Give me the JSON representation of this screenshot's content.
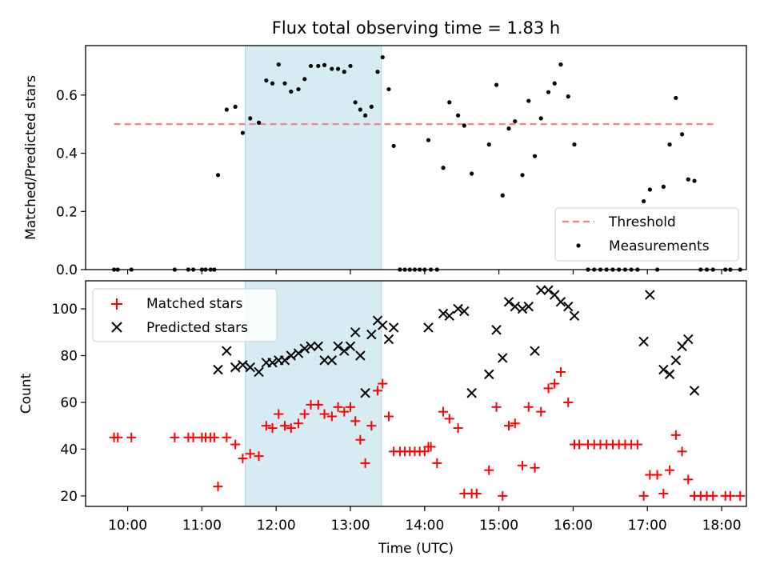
{
  "chart_data": [
    {
      "type": "scatter",
      "title": "Flux total observing time = 1.83 h",
      "ylabel": "Matched/Predicted stars",
      "xlabel": "",
      "xlim": [
        "09:26",
        "18:20"
      ],
      "ylim": [
        0,
        0.77
      ],
      "yticks": [
        0.0,
        0.2,
        0.4,
        0.6
      ],
      "ytick_labels": [
        "0.0",
        "0.2",
        "0.4",
        "0.6"
      ],
      "highlight_span": {
        "start": "11:35",
        "end": "13:25",
        "color": "#add8e6"
      },
      "reference_line": {
        "name": "Threshold",
        "y": 0.5,
        "x_start": "09:49",
        "x_end": "17:55",
        "style": "dashed",
        "color": "#f08080"
      },
      "legend": {
        "placement": "lower-right",
        "entries": [
          {
            "label": "Threshold",
            "marker": "dash",
            "color": "#f08080"
          },
          {
            "label": "Measurements",
            "marker": "dot",
            "color": "#000000"
          }
        ]
      },
      "series": [
        {
          "name": "Measurements",
          "marker": "dot",
          "color": "#000000",
          "points": [
            [
              "09:49",
              0
            ],
            [
              "09:52",
              0
            ],
            [
              "10:03",
              0
            ],
            [
              "10:38",
              0
            ],
            [
              "10:49",
              0
            ],
            [
              "10:53",
              0
            ],
            [
              "11:00",
              0
            ],
            [
              "11:03",
              0
            ],
            [
              "11:07",
              0
            ],
            [
              "11:10",
              0
            ],
            [
              "11:13",
              0.325
            ],
            [
              "11:20",
              0.55
            ],
            [
              "11:27",
              0.56
            ],
            [
              "11:33",
              0.47
            ],
            [
              "11:39",
              0.52
            ],
            [
              "11:46",
              0.505
            ],
            [
              "11:52",
              0.65
            ],
            [
              "11:57",
              0.64
            ],
            [
              "12:02",
              0.705
            ],
            [
              "12:07",
              0.64
            ],
            [
              "12:12",
              0.612
            ],
            [
              "12:18",
              0.62
            ],
            [
              "12:23",
              0.655
            ],
            [
              "12:28",
              0.7
            ],
            [
              "12:34",
              0.7
            ],
            [
              "12:39",
              0.703
            ],
            [
              "12:45",
              0.69
            ],
            [
              "12:50",
              0.69
            ],
            [
              "12:55",
              0.68
            ],
            [
              "13:00",
              0.7
            ],
            [
              "13:04",
              0.575
            ],
            [
              "13:08",
              0.55
            ],
            [
              "13:12",
              0.53
            ],
            [
              "13:17",
              0.56
            ],
            [
              "13:22",
              0.68
            ],
            [
              "13:26",
              0.73
            ],
            [
              "13:31",
              0.62
            ],
            [
              "13:35",
              0.425
            ],
            [
              "13:40",
              0
            ],
            [
              "13:44",
              0
            ],
            [
              "13:48",
              0
            ],
            [
              "13:52",
              0
            ],
            [
              "13:56",
              0
            ],
            [
              "14:00",
              0
            ],
            [
              "14:05",
              0
            ],
            [
              "14:03",
              0.445
            ],
            [
              "14:10",
              0
            ],
            [
              "14:15",
              0.35
            ],
            [
              "14:20",
              0.575
            ],
            [
              "14:27",
              0.53
            ],
            [
              "14:32",
              0.495
            ],
            [
              "14:38",
              0.33
            ],
            [
              "14:52",
              0.43
            ],
            [
              "14:58",
              0.635
            ],
            [
              "15:03",
              0.255
            ],
            [
              "15:08",
              0.485
            ],
            [
              "15:13",
              0.51
            ],
            [
              "15:19",
              0.325
            ],
            [
              "15:24",
              0.58
            ],
            [
              "15:29",
              0.39
            ],
            [
              "15:34",
              0.52
            ],
            [
              "15:40",
              0.61
            ],
            [
              "15:45",
              0.64
            ],
            [
              "15:50",
              0.705
            ],
            [
              "15:56",
              0.595
            ],
            [
              "16:01",
              0.43
            ],
            [
              "16:12",
              0
            ],
            [
              "16:17",
              0
            ],
            [
              "16:22",
              0
            ],
            [
              "16:27",
              0
            ],
            [
              "16:32",
              0
            ],
            [
              "16:37",
              0
            ],
            [
              "16:42",
              0
            ],
            [
              "16:47",
              0
            ],
            [
              "16:52",
              0
            ],
            [
              "16:57",
              0.235
            ],
            [
              "17:02",
              0.275
            ],
            [
              "17:08",
              0
            ],
            [
              "17:13",
              0.285
            ],
            [
              "17:18",
              0.43
            ],
            [
              "17:23",
              0.59
            ],
            [
              "17:28",
              0.465
            ],
            [
              "17:33",
              0.31
            ],
            [
              "17:38",
              0.305
            ],
            [
              "17:43",
              0
            ],
            [
              "17:48",
              0
            ],
            [
              "17:53",
              0
            ],
            [
              "18:03",
              0
            ],
            [
              "18:07",
              0
            ],
            [
              "18:15",
              0
            ]
          ]
        }
      ]
    },
    {
      "type": "scatter",
      "title": "",
      "xlabel": "Time (UTC)",
      "ylabel": "Count",
      "xlim": [
        "09:26",
        "18:20"
      ],
      "ylim": [
        15.5,
        112
      ],
      "xticks": [
        "10:00",
        "11:00",
        "12:00",
        "13:00",
        "14:00",
        "15:00",
        "16:00",
        "17:00",
        "18:00"
      ],
      "yticks": [
        20,
        40,
        60,
        80,
        100
      ],
      "ytick_labels": [
        "20",
        "40",
        "60",
        "80",
        "100"
      ],
      "highlight_span": {
        "start": "11:35",
        "end": "13:25",
        "color": "#add8e6"
      },
      "legend": {
        "placement": "upper-left",
        "entries": [
          {
            "label": "Matched stars",
            "marker": "plus",
            "color": "#ff0000"
          },
          {
            "label": "Predicted stars",
            "marker": "x",
            "color": "#000000"
          }
        ]
      },
      "series": [
        {
          "name": "Matched stars",
          "marker": "plus",
          "color": "#ff0000",
          "points": [
            [
              "09:49",
              45
            ],
            [
              "09:52",
              45
            ],
            [
              "10:03",
              45
            ],
            [
              "10:38",
              45
            ],
            [
              "10:49",
              45
            ],
            [
              "10:53",
              45
            ],
            [
              "11:00",
              45
            ],
            [
              "11:03",
              45
            ],
            [
              "11:07",
              45
            ],
            [
              "11:10",
              45
            ],
            [
              "11:13",
              24
            ],
            [
              "11:20",
              45
            ],
            [
              "11:27",
              42
            ],
            [
              "11:33",
              36
            ],
            [
              "11:39",
              38
            ],
            [
              "11:46",
              37
            ],
            [
              "11:52",
              50
            ],
            [
              "11:57",
              49
            ],
            [
              "12:02",
              55
            ],
            [
              "12:07",
              50
            ],
            [
              "12:12",
              49
            ],
            [
              "12:18",
              51
            ],
            [
              "12:23",
              55
            ],
            [
              "12:28",
              59
            ],
            [
              "12:34",
              59
            ],
            [
              "12:39",
              55
            ],
            [
              "12:45",
              54
            ],
            [
              "12:50",
              58
            ],
            [
              "12:55",
              56
            ],
            [
              "13:00",
              58
            ],
            [
              "13:04",
              52
            ],
            [
              "13:08",
              44
            ],
            [
              "13:12",
              34
            ],
            [
              "13:17",
              50
            ],
            [
              "13:22",
              65
            ],
            [
              "13:26",
              68
            ],
            [
              "13:31",
              54
            ],
            [
              "13:35",
              39
            ],
            [
              "13:40",
              39
            ],
            [
              "13:44",
              39
            ],
            [
              "13:48",
              39
            ],
            [
              "13:52",
              39
            ],
            [
              "13:56",
              39
            ],
            [
              "14:00",
              39
            ],
            [
              "14:05",
              41
            ],
            [
              "14:03",
              41
            ],
            [
              "14:10",
              34
            ],
            [
              "14:15",
              56
            ],
            [
              "14:20",
              53
            ],
            [
              "14:27",
              49
            ],
            [
              "14:32",
              21
            ],
            [
              "14:38",
              21
            ],
            [
              "14:42",
              21
            ],
            [
              "14:52",
              31
            ],
            [
              "14:58",
              58
            ],
            [
              "15:03",
              20
            ],
            [
              "15:08",
              50
            ],
            [
              "15:13",
              51
            ],
            [
              "15:19",
              33
            ],
            [
              "15:24",
              58
            ],
            [
              "15:29",
              32
            ],
            [
              "15:34",
              56
            ],
            [
              "15:40",
              66
            ],
            [
              "15:45",
              68
            ],
            [
              "15:50",
              73
            ],
            [
              "15:56",
              60
            ],
            [
              "16:01",
              42
            ],
            [
              "16:05",
              42
            ],
            [
              "16:12",
              42
            ],
            [
              "16:17",
              42
            ],
            [
              "16:22",
              42
            ],
            [
              "16:27",
              42
            ],
            [
              "16:32",
              42
            ],
            [
              "16:37",
              42
            ],
            [
              "16:42",
              42
            ],
            [
              "16:47",
              42
            ],
            [
              "16:52",
              42
            ],
            [
              "16:57",
              20
            ],
            [
              "17:02",
              29
            ],
            [
              "17:08",
              29
            ],
            [
              "17:13",
              21
            ],
            [
              "17:18",
              31
            ],
            [
              "17:23",
              46
            ],
            [
              "17:28",
              39
            ],
            [
              "17:33",
              27
            ],
            [
              "17:38",
              20
            ],
            [
              "17:43",
              20
            ],
            [
              "17:48",
              20
            ],
            [
              "17:53",
              20
            ],
            [
              "18:03",
              20
            ],
            [
              "18:07",
              20
            ],
            [
              "18:15",
              20
            ]
          ]
        },
        {
          "name": "Predicted stars",
          "marker": "x",
          "color": "#000000",
          "points": [
            [
              "11:13",
              74
            ],
            [
              "11:20",
              82
            ],
            [
              "11:27",
              75
            ],
            [
              "11:33",
              76
            ],
            [
              "11:39",
              75
            ],
            [
              "11:46",
              73
            ],
            [
              "11:52",
              77
            ],
            [
              "11:57",
              77
            ],
            [
              "12:02",
              78
            ],
            [
              "12:07",
              78
            ],
            [
              "12:12",
              80
            ],
            [
              "12:18",
              81
            ],
            [
              "12:23",
              83
            ],
            [
              "12:28",
              84
            ],
            [
              "12:34",
              84
            ],
            [
              "12:39",
              78
            ],
            [
              "12:45",
              78
            ],
            [
              "12:50",
              84
            ],
            [
              "12:55",
              82
            ],
            [
              "13:00",
              84
            ],
            [
              "13:04",
              90
            ],
            [
              "13:08",
              80
            ],
            [
              "13:12",
              64
            ],
            [
              "13:17",
              89
            ],
            [
              "13:22",
              95
            ],
            [
              "13:26",
              93
            ],
            [
              "13:31",
              87
            ],
            [
              "13:35",
              92
            ],
            [
              "14:03",
              92
            ],
            [
              "14:15",
              98
            ],
            [
              "14:20",
              97
            ],
            [
              "14:27",
              100
            ],
            [
              "14:32",
              99
            ],
            [
              "14:38",
              64
            ],
            [
              "14:52",
              72
            ],
            [
              "14:58",
              91
            ],
            [
              "15:03",
              79
            ],
            [
              "15:08",
              103
            ],
            [
              "15:13",
              101
            ],
            [
              "15:19",
              100
            ],
            [
              "15:24",
              101
            ],
            [
              "15:29",
              82
            ],
            [
              "15:34",
              108
            ],
            [
              "15:40",
              108
            ],
            [
              "15:45",
              106
            ],
            [
              "15:50",
              103
            ],
            [
              "15:56",
              101
            ],
            [
              "16:01",
              97
            ],
            [
              "16:57",
              86
            ],
            [
              "17:02",
              106
            ],
            [
              "17:13",
              74
            ],
            [
              "17:18",
              72
            ],
            [
              "17:23",
              78
            ],
            [
              "17:28",
              84
            ],
            [
              "17:33",
              87
            ],
            [
              "17:38",
              65
            ]
          ]
        }
      ]
    }
  ]
}
